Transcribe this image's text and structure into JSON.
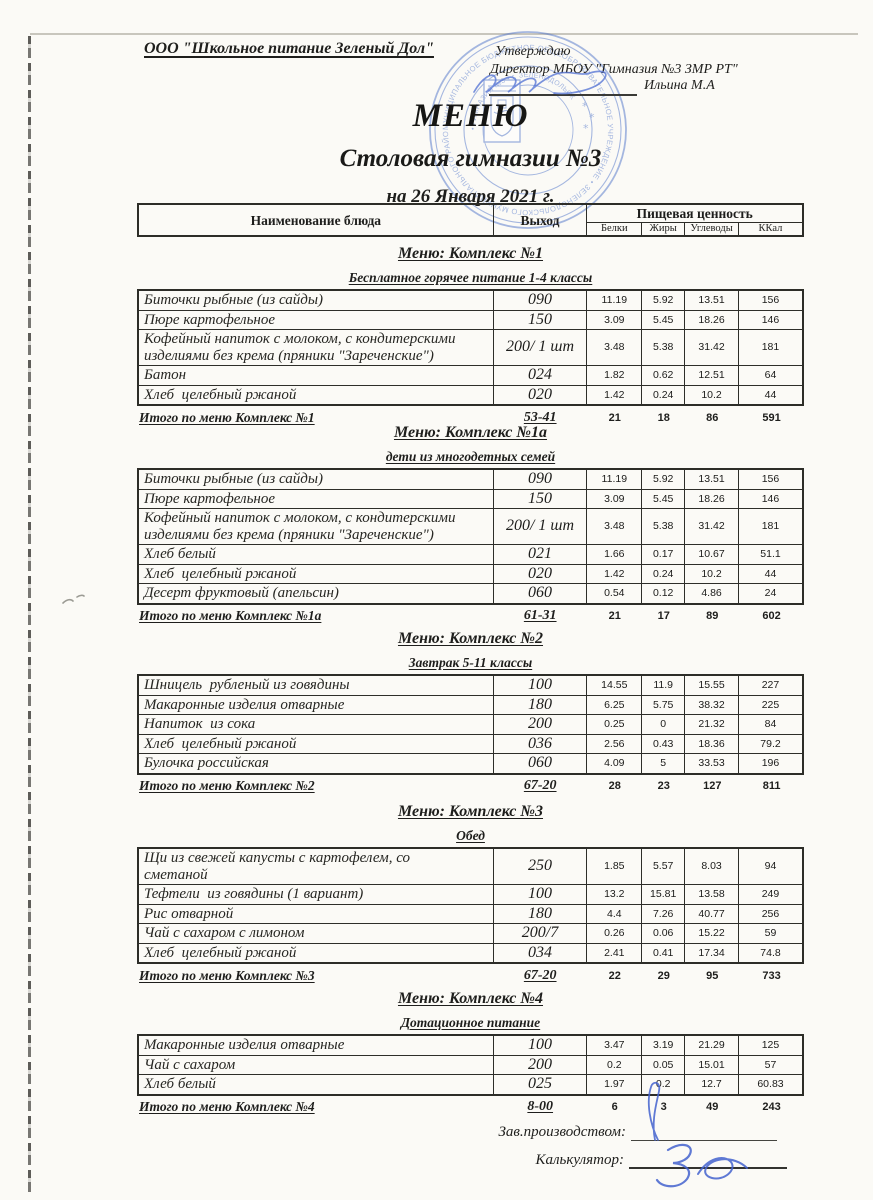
{
  "header": {
    "company": "ООО \"Школьное питание Зеленый Дол\"",
    "approve1": "Утверждаю",
    "approve2": "Директор МБОУ \"Гимназия №3 ЗМР РТ\"",
    "approver": "Ильина М.А",
    "title": "МЕНЮ",
    "subtitle": "Столовая гимназии №3",
    "date_line": "на 26 Января 2021 г."
  },
  "table_header": {
    "dish": "Наименование блюда",
    "output": "Выход",
    "nutrition": "Пищевая ценность",
    "cols": [
      "Белки",
      "Жиры",
      "Углеводы",
      "ККал"
    ]
  },
  "sections": [
    {
      "title": "Меню: Комплекс №1",
      "subtitle": "Бесплатное горячее питание  1-4 классы",
      "rows": [
        [
          "Биточки рыбные (из сайды)",
          "090",
          "11.19",
          "5.92",
          "13.51",
          "156"
        ],
        [
          "Пюре картофельное",
          "150",
          "3.09",
          "5.45",
          "18.26",
          "146"
        ],
        [
          "Кофейный напиток с молоком, с кондитерскими\nизделиями без крема (пряники \"Зареченские\")",
          "200/ 1 шт",
          "3.48",
          "5.38",
          "31.42",
          "181"
        ],
        [
          "Батон",
          "024",
          "1.82",
          "0.62",
          "12.51",
          "64"
        ],
        [
          "Хлеб  целебный ржаной",
          "020",
          "1.42",
          "0.24",
          "10.2",
          "44"
        ]
      ],
      "total": [
        "Итого по меню Комплекс №1",
        "53-41",
        "21",
        "18",
        "86",
        "591"
      ]
    },
    {
      "title": "Меню: Комплекс №1а",
      "subtitle": "дети из многодетных семей",
      "rows": [
        [
          "Биточки рыбные (из сайды)",
          "090",
          "11.19",
          "5.92",
          "13.51",
          "156"
        ],
        [
          "Пюре картофельное",
          "150",
          "3.09",
          "5.45",
          "18.26",
          "146"
        ],
        [
          "Кофейный напиток с молоком, с кондитерскими\nизделиями без крема (пряники \"Зареченские\")",
          "200/ 1 шт",
          "3.48",
          "5.38",
          "31.42",
          "181"
        ],
        [
          "Хлеб белый",
          "021",
          "1.66",
          "0.17",
          "10.67",
          "51.1"
        ],
        [
          "Хлеб  целебный ржаной",
          "020",
          "1.42",
          "0.24",
          "10.2",
          "44"
        ],
        [
          "Десерт фруктовый (апельсин)",
          "060",
          "0.54",
          "0.12",
          "4.86",
          "24"
        ]
      ],
      "total": [
        "Итого по меню Комплекс №1а",
        "61-31",
        "21",
        "17",
        "89",
        "602"
      ]
    },
    {
      "title": "Меню: Комплекс №2",
      "subtitle": "Завтрак 5-11 классы",
      "rows": [
        [
          "Шницель  рубленый из говядины",
          "100",
          "14.55",
          "11.9",
          "15.55",
          "227"
        ],
        [
          "Макаронные изделия отварные",
          "180",
          "6.25",
          "5.75",
          "38.32",
          "225"
        ],
        [
          "Напиток  из сока",
          "200",
          "0.25",
          "0",
          "21.32",
          "84"
        ],
        [
          "Хлеб  целебный ржаной",
          "036",
          "2.56",
          "0.43",
          "18.36",
          "79.2"
        ],
        [
          "Булочка российская",
          "060",
          "4.09",
          "5",
          "33.53",
          "196"
        ]
      ],
      "total": [
        "Итого по меню Комплекс №2",
        "67-20",
        "28",
        "23",
        "127",
        "811"
      ]
    },
    {
      "title": "Меню: Комплекс №3",
      "subtitle": "Обед",
      "rows": [
        [
          "Щи из свежей капусты с картофелем, со\nсметаной",
          "250",
          "1.85",
          "5.57",
          "8.03",
          "94"
        ],
        [
          "Тефтели  из говядины (1 вариант)",
          "100",
          "13.2",
          "15.81",
          "13.58",
          "249"
        ],
        [
          "Рис отварной",
          "180",
          "4.4",
          "7.26",
          "40.77",
          "256"
        ],
        [
          "Чай с сахаром с лимоном",
          "200/7",
          "0.26",
          "0.06",
          "15.22",
          "59"
        ],
        [
          "Хлеб  целебный ржаной",
          "034",
          "2.41",
          "0.41",
          "17.34",
          "74.8"
        ]
      ],
      "total": [
        "Итого по меню Комплекс №3",
        "67-20",
        "22",
        "29",
        "95",
        "733"
      ]
    },
    {
      "title": "Меню: Комплекс №4",
      "subtitle": "Дотационное питание",
      "rows": [
        [
          "Макаронные изделия отварные",
          "100",
          "3.47",
          "3.19",
          "21.29",
          "125"
        ],
        [
          "Чай с сахаром",
          "200",
          "0.2",
          "0.05",
          "15.01",
          "57"
        ],
        [
          "Хлеб белый",
          "025",
          "1.97",
          "0.2",
          "12.7",
          "60.83"
        ]
      ],
      "total": [
        "Итого по меню Комплекс №4",
        "8-00",
        "6",
        "3",
        "49",
        "243"
      ]
    }
  ],
  "footer": {
    "prod_label": "Зав.производством:",
    "calc_label": "Калькулятор:"
  },
  "stamp": {
    "ring_text": "МУНИЦИПАЛЬНОЕ БЮДЖЕТНОЕ ОБЩЕОБРАЗОВАТЕЛЬНОЕ УЧРЕЖДЕНИЕ • ЗЕЛЕНОДОЛЬСКОГО МУНИЦИПАЛЬНОГО РАЙОНА •",
    "inner_text": "• ГИМНАЗИЯ №3 • г. ЗЕЛЕНОДОЛЬСК",
    "color": "#4f74c9"
  },
  "colors": {
    "ink": "#1e1e1c",
    "stamp_blue": "#4f74c9",
    "signature_blue": "#4463cf",
    "paper": "#fbfaf6"
  }
}
